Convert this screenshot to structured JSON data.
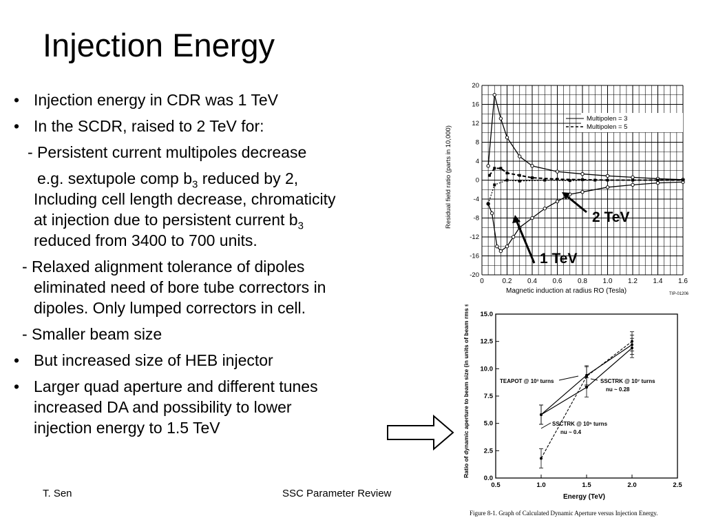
{
  "slide": {
    "title": "Injection Energy",
    "footer_left": "T. Sen",
    "footer_center": "SSC Parameter Review"
  },
  "bullets": {
    "b1": "Injection energy in CDR was 1 TeV",
    "b2": "In the SCDR, raised to 2 TeV for:",
    "s1": "- Persistent current multipoles decrease",
    "s1a_pre": "e.g. sextupole comp b",
    "s1a_sub": "3",
    "s1a_post": " reduced by 2,",
    "s1b": "Including cell length decrease, chromaticity",
    "s1c_pre": "at injection due to persistent current b",
    "s1c_sub": "3",
    "s1d": "reduced from 3400 to 700 units.",
    "s2a": "- Relaxed alignment tolerance of dipoles",
    "s2b": "eliminated need of bore tube correctors in",
    "s2c": "dipoles. Only lumped correctors in cell.",
    "s3": "- Smaller beam size",
    "b3": "But increased size of HEB injector",
    "b4a": " Larger quad aperture and different tunes",
    "b4b": "increased DA and possibility to lower",
    "b4c": "injection energy to 1.5 TeV",
    "bullet_char": "•"
  },
  "chart_data": [
    {
      "type": "line",
      "xlabel": "Magnetic induction at radius RO (Tesla)",
      "ylabel": "Residual field ratio (parts in 10,000)",
      "xlim": [
        0,
        1.6
      ],
      "ylim": [
        -20,
        20
      ],
      "x_ticks": [
        "0",
        "0.2",
        "0.4",
        "0.6",
        "0.8",
        "1.0",
        "1.2",
        "1.4",
        "1.6"
      ],
      "y_ticks": [
        "20",
        "16",
        "12",
        "8",
        "4",
        "0",
        "-4",
        "-8",
        "-12",
        "-16",
        "-20"
      ],
      "legend": [
        "Multipolen = 3",
        "Multipolen = 5"
      ],
      "figure_id": "TIP-01206",
      "annotations": [
        "2 TeV",
        "1 TeV"
      ],
      "series": [
        {
          "x": [
            0.05,
            0.1,
            0.15,
            0.2,
            0.3,
            0.4,
            0.6,
            0.8,
            1.0,
            1.2,
            1.4,
            1.6
          ],
          "y": [
            3,
            18,
            13,
            9,
            5,
            3,
            1.8,
            1.3,
            0.9,
            0.6,
            0.3,
            0.1
          ]
        },
        {
          "x": [
            0.05,
            0.08,
            0.12,
            0.15,
            0.2,
            0.25,
            0.3,
            0.4,
            0.5,
            0.6,
            0.7,
            0.8,
            1.0,
            1.2,
            1.4,
            1.6
          ],
          "y": [
            -5,
            -7,
            -14,
            -15,
            -14,
            -12,
            -10,
            -8,
            -6,
            -4.5,
            -3,
            -2.5,
            -1.5,
            -1,
            -0.6,
            -0.4
          ]
        },
        {
          "x": [
            0.06,
            0.1,
            0.15,
            0.2,
            0.3,
            0.4,
            0.6,
            0.8,
            1.0,
            1.2,
            1.4,
            1.6
          ],
          "y": [
            1,
            2.5,
            2.5,
            1.5,
            1,
            0.5,
            0.2,
            0.1,
            0,
            0,
            0,
            0
          ]
        },
        {
          "x": [
            0.05,
            0.1,
            0.2,
            0.3,
            0.5,
            0.7,
            0.9
          ],
          "y": [
            -5,
            -1,
            0,
            -0.2,
            0,
            -0.1,
            0
          ]
        }
      ]
    },
    {
      "type": "line",
      "xlabel": "Energy (TeV)",
      "ylabel": "Ratio of dynamic aperture to beam size (in units of beam rms size)",
      "xlim": [
        0.5,
        2.5
      ],
      "ylim": [
        0,
        15
      ],
      "x_ticks": [
        "0.5",
        "1.0",
        "1.5",
        "2.0",
        "2.5"
      ],
      "y_ticks": [
        "15.0",
        "12.5",
        "10.0",
        "7.5",
        "5.0",
        "2.5",
        "0.0"
      ],
      "caption": "Figure 8-1.  Graph of Calculated Dynamic Aperture versus Injection Energy.",
      "series": [
        {
          "name": "TEAPOT @ 10³ turns",
          "x": [
            1.0,
            1.5,
            2.0
          ],
          "y": [
            5.8,
            9.4,
            12.2
          ]
        },
        {
          "name": "SSCTRK @ 10⁷ turns nu ~ 0.28",
          "x": [
            1.0,
            1.5,
            2.0
          ],
          "y": [
            5.8,
            8.3,
            11.9
          ]
        },
        {
          "name": "SSCTRK @ 10⁵ turns nu ~ 0.4",
          "x": [
            1.0,
            1.5,
            2.0
          ],
          "y": [
            1.8,
            9.3,
            12.5
          ]
        }
      ],
      "labels": {
        "teapot": "TEAPOT @ 10³ turns",
        "ssctrk7a": "SSCTRK @ 10⁷ turns",
        "ssctrk7b": "nu ~ 0.28",
        "ssctrk5a": "SSCTRK @ 10⁵ turns",
        "ssctrk5b": "nu ~ 0.4"
      }
    }
  ]
}
